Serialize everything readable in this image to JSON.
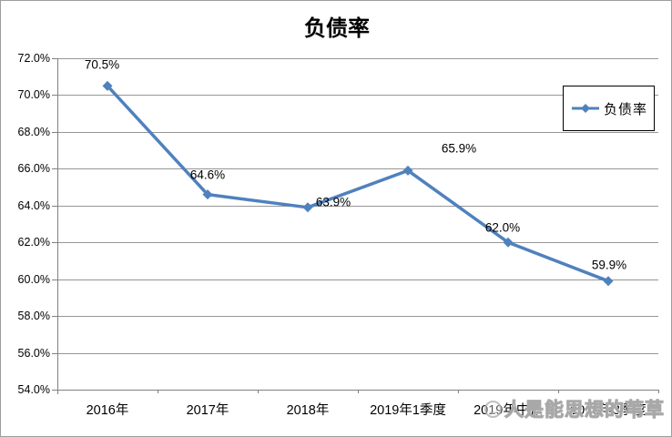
{
  "title": "负债率",
  "legend": {
    "label": "负债率"
  },
  "watermark": {
    "text": "人是能思想的苇草",
    "icon": "logo-circle"
  },
  "colors": {
    "line": "#4F81BD",
    "grid": "#969696",
    "axis": "#808080",
    "frame_border": "#9d9d9d",
    "watermark": "#b5b5b5"
  },
  "chart_data": {
    "type": "line",
    "title": "负债率",
    "categories": [
      "2016年",
      "2017年",
      "2018年",
      "2019年1季度",
      "2019年中报",
      "2019年3季度"
    ],
    "series": [
      {
        "name": "负债率",
        "values": [
          70.5,
          64.6,
          63.9,
          65.9,
          62.0,
          59.9
        ]
      }
    ],
    "point_labels": [
      "70.5%",
      "64.6%",
      "63.9%",
      "65.9%",
      "62.0%",
      "59.9%"
    ],
    "y_ticks": [
      "72.0%",
      "70.0%",
      "68.0%",
      "66.0%",
      "64.0%",
      "62.0%",
      "60.0%",
      "58.0%",
      "56.0%",
      "54.0%"
    ],
    "ylim": [
      54,
      72
    ],
    "y_step": 2,
    "grid": true,
    "legend_position": "inside-right-top",
    "marker": "diamond"
  }
}
